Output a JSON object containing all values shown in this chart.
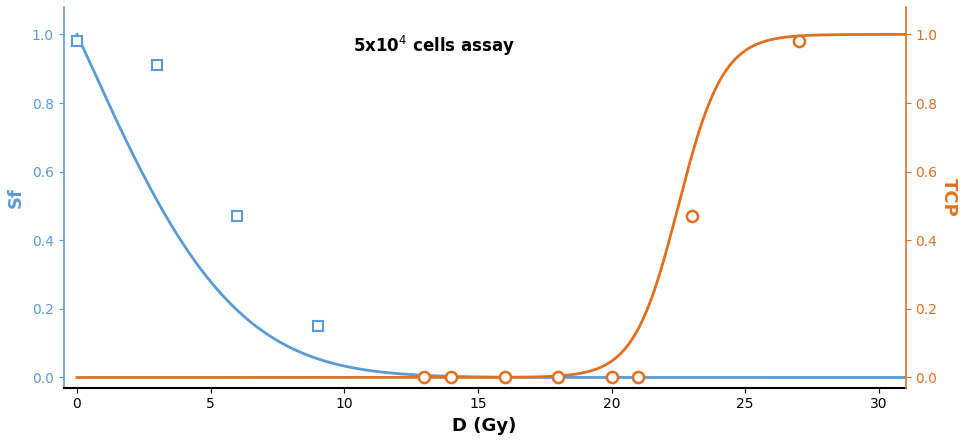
{
  "title": "5x10$^4$ cells assay",
  "xlabel": "D (Gy)",
  "ylabel_left": "Sf",
  "ylabel_right": "TCP",
  "xlim": [
    -0.5,
    31
  ],
  "ylim_left": [
    -0.03,
    1.08
  ],
  "ylim_right": [
    -0.03,
    1.08
  ],
  "blue_color": "#5B9BD5",
  "orange_color": "#E07020",
  "sf_data_x": [
    0,
    3,
    6,
    9
  ],
  "sf_data_y": [
    0.98,
    0.91,
    0.47,
    0.15
  ],
  "tcp_data_x": [
    13,
    14,
    16,
    18,
    20,
    21,
    23,
    27
  ],
  "tcp_data_y": [
    0.0,
    0.0,
    0.0,
    0.0,
    0.0,
    0.0,
    0.47,
    0.98
  ],
  "alpha_lq": 0.17,
  "beta_lq": 0.017,
  "tcp_d50": 22.5,
  "tcp_k": 1.2
}
